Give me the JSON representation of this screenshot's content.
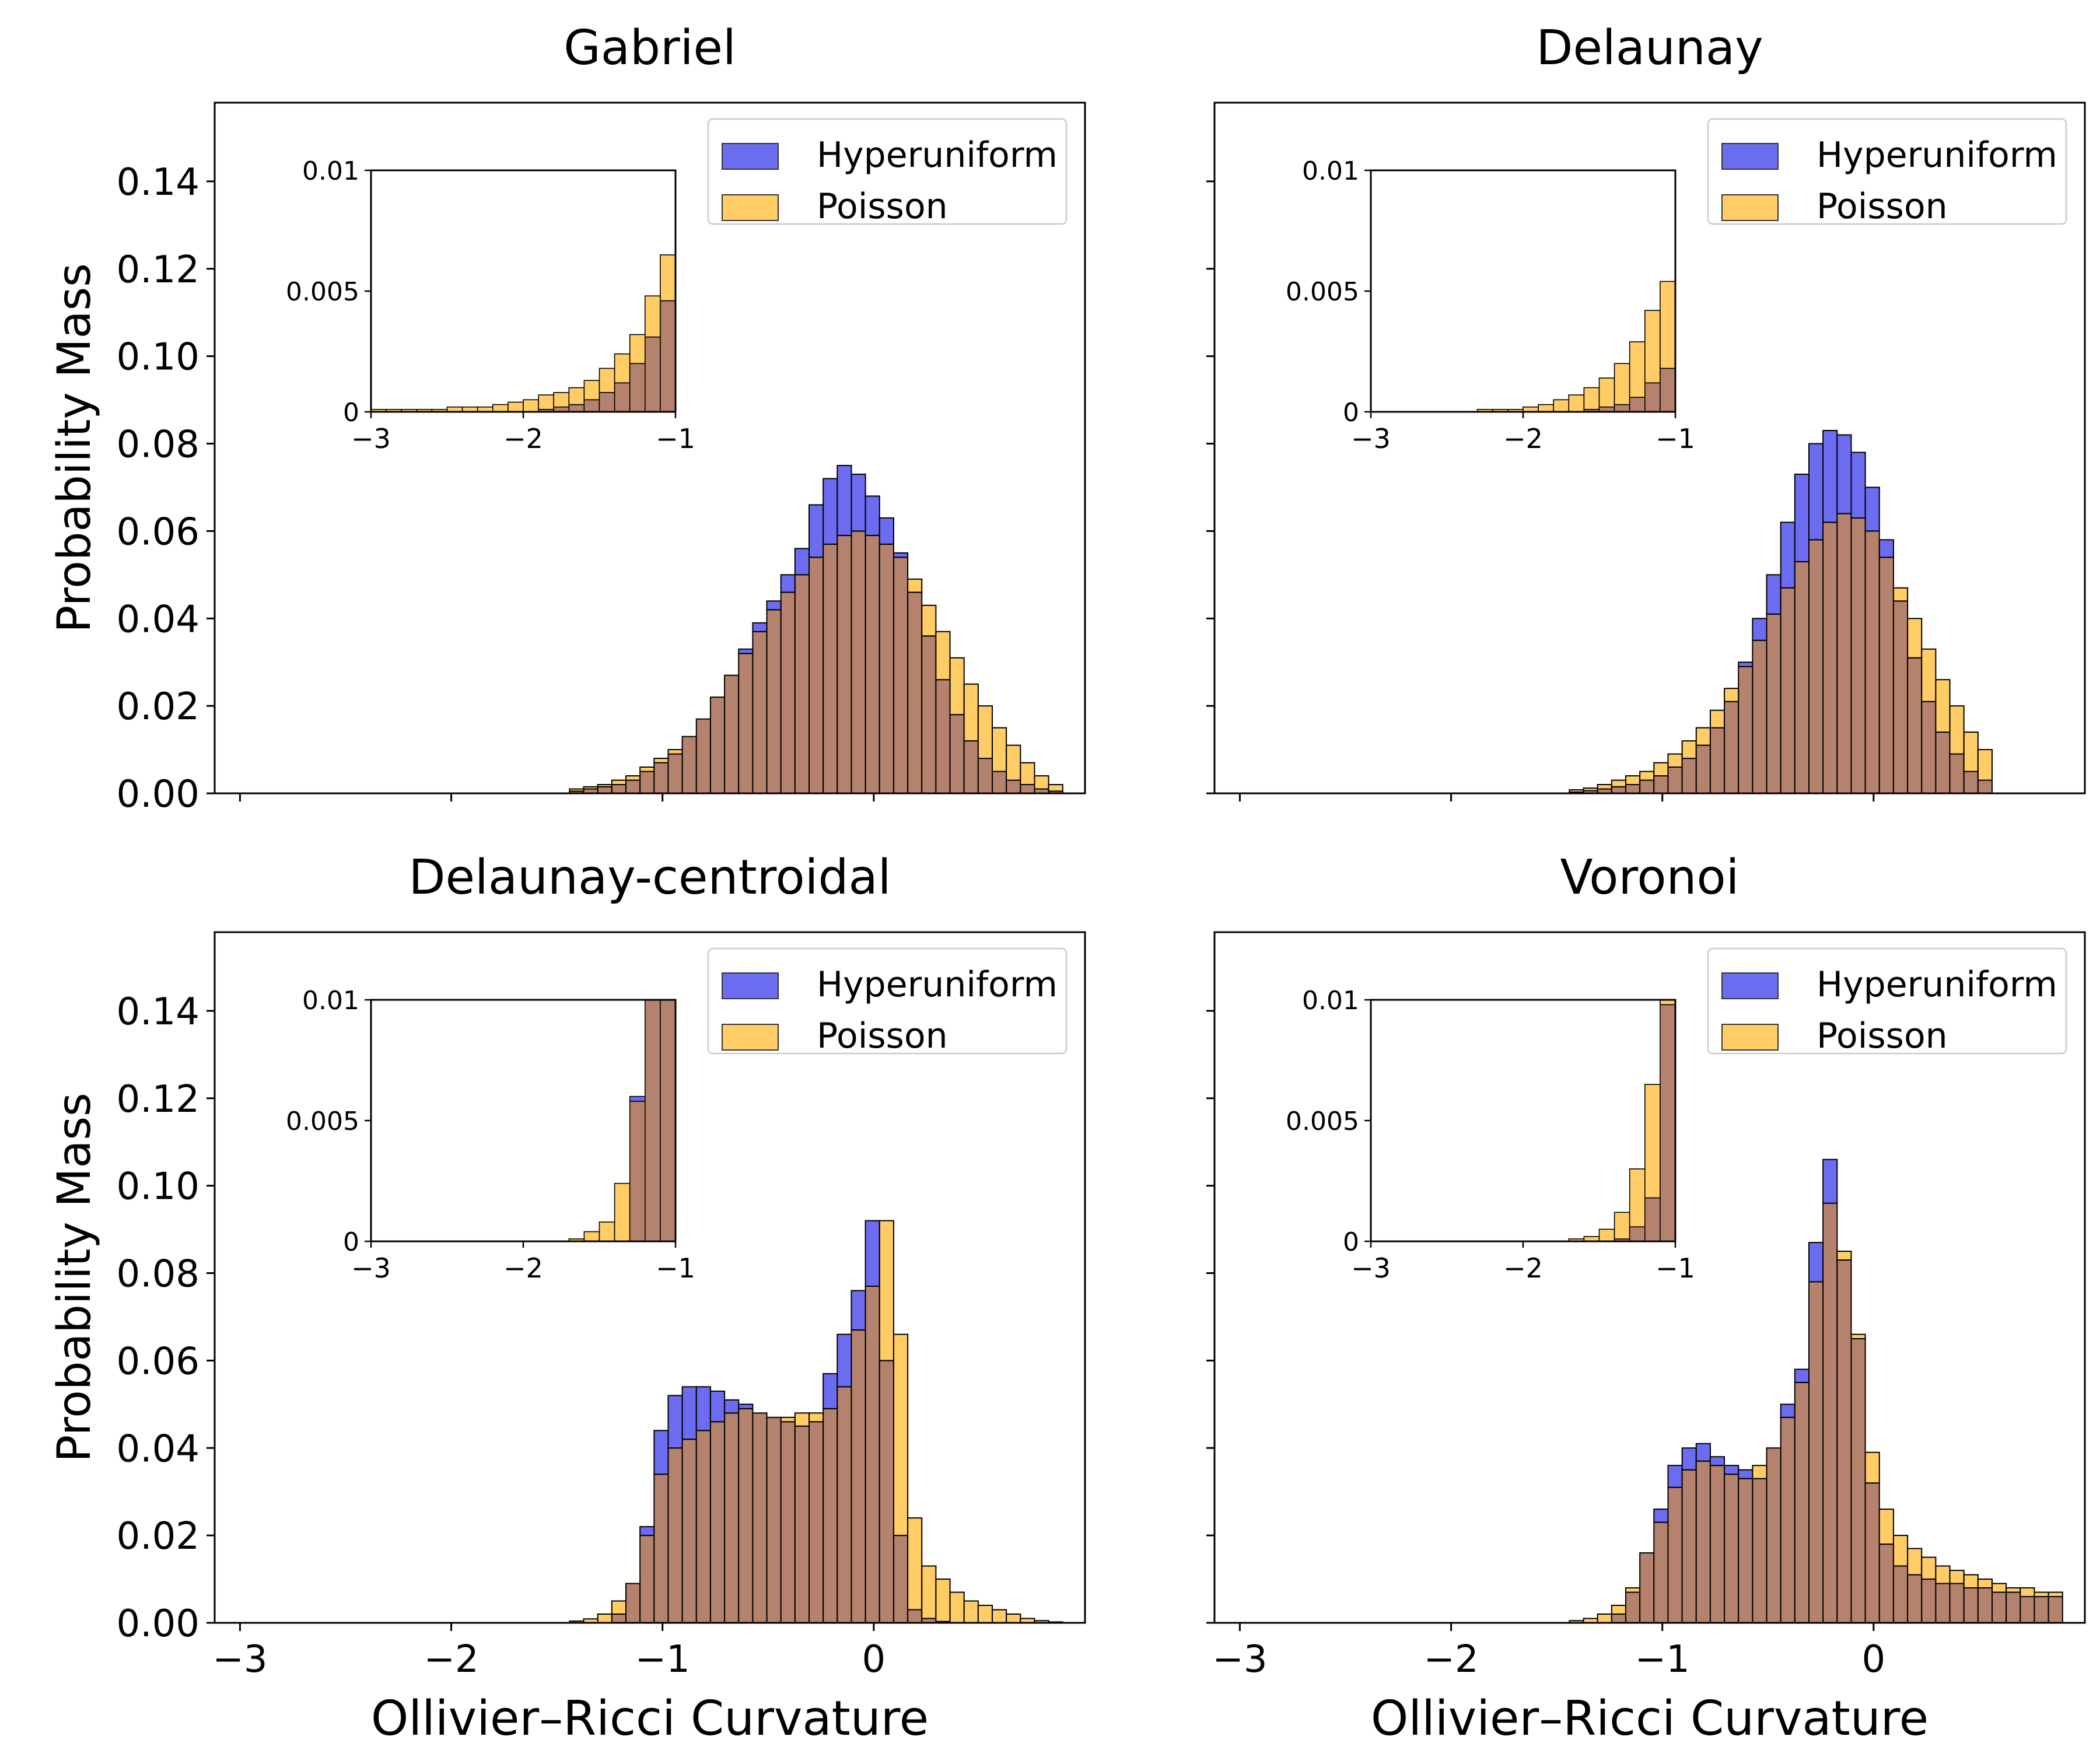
{
  "figure": {
    "ylabel": "Probability Mass",
    "xlabel": "Ollivier–Ricci Curvature"
  },
  "colors": {
    "hyperuniform": "#6c6cf0",
    "poisson": "#ffcc66",
    "overlap": "#b5826e",
    "edge": "#000000"
  },
  "chart_data": [
    {
      "type": "histogram",
      "title": "Gabriel",
      "xlabel": "Ollivier–Ricci Curvature",
      "ylabel": "Probability Mass",
      "xlim": [
        -3.12,
        1.0
      ],
      "ylim": [
        0,
        0.158
      ],
      "xticks": [
        -3,
        -2,
        -1,
        0
      ],
      "xtick_labels": [
        "−3",
        "−2",
        "−1",
        "0"
      ],
      "yticks": [
        0,
        0.02,
        0.04,
        0.06,
        0.08,
        0.1,
        0.12,
        0.14
      ],
      "ytick_labels": [
        "0.00",
        "0.02",
        "0.04",
        "0.06",
        "0.08",
        "0.10",
        "0.12",
        "0.14"
      ],
      "bin_start": -1.44,
      "bin_width": 0.0667,
      "legend": {
        "entries": [
          "Hyperuniform",
          "Poisson"
        ],
        "loc": "upper right"
      },
      "series": [
        {
          "name": "Hyperuniform",
          "values": [
            0.0005,
            0.001,
            0.0015,
            0.002,
            0.003,
            0.005,
            0.007,
            0.009,
            0.013,
            0.017,
            0.022,
            0.027,
            0.033,
            0.039,
            0.044,
            0.05,
            0.056,
            0.066,
            0.072,
            0.075,
            0.073,
            0.068,
            0.063,
            0.055,
            0.046,
            0.036,
            0.026,
            0.018,
            0.012,
            0.008,
            0.005,
            0.003,
            0.002,
            0.001,
            0.0005
          ]
        },
        {
          "name": "Poisson",
          "values": [
            0.001,
            0.0015,
            0.002,
            0.003,
            0.004,
            0.006,
            0.008,
            0.01,
            0.013,
            0.017,
            0.022,
            0.027,
            0.032,
            0.037,
            0.042,
            0.046,
            0.05,
            0.054,
            0.057,
            0.059,
            0.06,
            0.059,
            0.057,
            0.054,
            0.049,
            0.043,
            0.037,
            0.031,
            0.025,
            0.02,
            0.015,
            0.011,
            0.007,
            0.004,
            0.002
          ]
        }
      ],
      "inset": {
        "xlim": [
          -3,
          -1
        ],
        "ylim": [
          0,
          0.01
        ],
        "xticks": [
          -3,
          -2,
          -1
        ],
        "xtick_labels": [
          "−3",
          "−2",
          "−1"
        ],
        "yticks": [
          0,
          0.005,
          0.01
        ],
        "ytick_labels": [
          "0",
          "0.005",
          "0.01"
        ],
        "bin_width": 0.1,
        "series": [
          {
            "name": "Hyperuniform",
            "values": [
              0,
              0,
              0,
              0,
              0,
              0,
              0,
              0,
              0,
              0,
              0,
              0,
              0.0001,
              0.0002,
              0.0003,
              0.0005,
              0.0008,
              0.0012,
              0.002,
              0.0031,
              0.0046
            ]
          },
          {
            "name": "Poisson",
            "values": [
              0.0001,
              0.0001,
              0.0001,
              0.0001,
              0.0001,
              0.0001,
              0.0002,
              0.0002,
              0.0002,
              0.0003,
              0.0004,
              0.0005,
              0.0007,
              0.0008,
              0.001,
              0.0013,
              0.0018,
              0.0024,
              0.0032,
              0.0048,
              0.0065
            ]
          }
        ]
      }
    },
    {
      "type": "histogram",
      "title": "Delaunay",
      "xlabel": "Ollivier–Ricci Curvature",
      "ylabel": "Probability Mass",
      "xlim": [
        -3.12,
        1.0
      ],
      "ylim": [
        0,
        0.158
      ],
      "xticks": [
        -3,
        -2,
        -1,
        0
      ],
      "xtick_labels": [
        "−3",
        "−2",
        "−1",
        "0"
      ],
      "yticks": [
        0,
        0.02,
        0.04,
        0.06,
        0.08,
        0.1,
        0.12,
        0.14
      ],
      "ytick_labels": [
        "0.00",
        "0.02",
        "0.04",
        "0.06",
        "0.08",
        "0.10",
        "0.12",
        "0.14"
      ],
      "bin_start": -1.44,
      "bin_width": 0.0667,
      "legend": {
        "entries": [
          "Hyperuniform",
          "Poisson"
        ],
        "loc": "upper right"
      },
      "series": [
        {
          "name": "Hyperuniform",
          "values": [
            0.0003,
            0.0006,
            0.001,
            0.0015,
            0.002,
            0.003,
            0.004,
            0.006,
            0.008,
            0.011,
            0.015,
            0.021,
            0.03,
            0.04,
            0.05,
            0.062,
            0.073,
            0.08,
            0.083,
            0.082,
            0.078,
            0.07,
            0.058,
            0.044,
            0.031,
            0.021,
            0.014,
            0.009,
            0.005,
            0.003
          ]
        },
        {
          "name": "Poisson",
          "values": [
            0.0008,
            0.0012,
            0.002,
            0.003,
            0.004,
            0.005,
            0.007,
            0.009,
            0.012,
            0.015,
            0.019,
            0.024,
            0.029,
            0.035,
            0.041,
            0.047,
            0.053,
            0.058,
            0.062,
            0.064,
            0.063,
            0.06,
            0.054,
            0.047,
            0.04,
            0.033,
            0.026,
            0.02,
            0.014,
            0.01
          ]
        }
      ],
      "inset": {
        "xlim": [
          -3,
          -1
        ],
        "ylim": [
          0,
          0.01
        ],
        "xticks": [
          -3,
          -2,
          -1
        ],
        "xtick_labels": [
          "−3",
          "−2",
          "−1"
        ],
        "yticks": [
          0,
          0.005,
          0.01
        ],
        "ytick_labels": [
          "0",
          "0.005",
          "0.01"
        ],
        "bin_width": 0.1,
        "series": [
          {
            "name": "Hyperuniform",
            "values": [
              0,
              0,
              0,
              0,
              0,
              0,
              0,
              0,
              0,
              0,
              0,
              0,
              0,
              0,
              0,
              0.0001,
              0.0002,
              0.0003,
              0.0006,
              0.0012,
              0.0018
            ]
          },
          {
            "name": "Poisson",
            "values": [
              0,
              0,
              0,
              0,
              0,
              0,
              0,
              0,
              0.0001,
              0.0001,
              0.0001,
              0.0002,
              0.0003,
              0.0005,
              0.0007,
              0.001,
              0.0014,
              0.002,
              0.0029,
              0.0042,
              0.0054
            ]
          }
        ]
      }
    },
    {
      "type": "histogram",
      "title": "Delaunay-centroidal",
      "xlabel": "Ollivier–Ricci Curvature",
      "ylabel": "Probability Mass",
      "xlim": [
        -3.12,
        1.0
      ],
      "ylim": [
        0,
        0.158
      ],
      "xticks": [
        -3,
        -2,
        -1,
        0
      ],
      "xtick_labels": [
        "−3",
        "−2",
        "−1",
        "0"
      ],
      "yticks": [
        0,
        0.02,
        0.04,
        0.06,
        0.08,
        0.1,
        0.12,
        0.14
      ],
      "ytick_labels": [
        "0.00",
        "0.02",
        "0.04",
        "0.06",
        "0.08",
        "0.10",
        "0.12",
        "0.14"
      ],
      "bin_start": -1.44,
      "bin_width": 0.0667,
      "legend": {
        "entries": [
          "Hyperuniform",
          "Poisson"
        ],
        "loc": "upper right"
      },
      "series": [
        {
          "name": "Hyperuniform",
          "values": [
            0,
            0,
            0,
            0.002,
            0.009,
            0.022,
            0.044,
            0.052,
            0.054,
            0.054,
            0.053,
            0.051,
            0.05,
            0.048,
            0.047,
            0.046,
            0.045,
            0.046,
            0.057,
            0.066,
            0.076,
            0.092,
            0.06,
            0.02,
            0.003,
            0.001,
            0.0003,
            0,
            0,
            0,
            0,
            0,
            0,
            0,
            0
          ]
        },
        {
          "name": "Poisson",
          "values": [
            0.0004,
            0.0009,
            0.002,
            0.005,
            0.009,
            0.02,
            0.034,
            0.04,
            0.042,
            0.044,
            0.046,
            0.048,
            0.049,
            0.048,
            0.047,
            0.047,
            0.048,
            0.048,
            0.049,
            0.054,
            0.067,
            0.077,
            0.092,
            0.066,
            0.024,
            0.013,
            0.01,
            0.007,
            0.005,
            0.004,
            0.003,
            0.002,
            0.001,
            0.0005,
            0.0002
          ]
        }
      ],
      "inset": {
        "xlim": [
          -3,
          -1
        ],
        "ylim": [
          0,
          0.01
        ],
        "xticks": [
          -3,
          -2,
          -1
        ],
        "xtick_labels": [
          "−3",
          "−2",
          "−1"
        ],
        "yticks": [
          0,
          0.005,
          0.01
        ],
        "ytick_labels": [
          "0",
          "0.005",
          "0.01"
        ],
        "bin_width": 0.1,
        "series": [
          {
            "name": "Hyperuniform",
            "values": [
              0,
              0,
              0,
              0,
              0,
              0,
              0,
              0,
              0,
              0,
              0,
              0,
              0,
              0,
              0,
              0,
              0,
              0,
              0.006,
              0.01,
              0.01
            ]
          },
          {
            "name": "Poisson",
            "values": [
              0,
              0,
              0,
              0,
              0,
              0,
              0,
              0,
              0,
              0,
              0,
              0,
              0,
              0,
              0.0001,
              0.0004,
              0.0008,
              0.0024,
              0.0058,
              0.01,
              0.01
            ]
          }
        ]
      }
    },
    {
      "type": "histogram",
      "title": "Voronoi",
      "xlabel": "Ollivier–Ricci Curvature",
      "ylabel": "Probability Mass",
      "xlim": [
        -3.12,
        1.0
      ],
      "ylim": [
        0,
        0.158
      ],
      "xticks": [
        -3,
        -2,
        -1,
        0
      ],
      "xtick_labels": [
        "−3",
        "−2",
        "−1",
        "0"
      ],
      "yticks": [
        0,
        0.02,
        0.04,
        0.06,
        0.08,
        0.1,
        0.12,
        0.14
      ],
      "ytick_labels": [
        "0.00",
        "0.02",
        "0.04",
        "0.06",
        "0.08",
        "0.10",
        "0.12",
        "0.14"
      ],
      "bin_start": -1.44,
      "bin_width": 0.0667,
      "legend": {
        "entries": [
          "Hyperuniform",
          "Poisson"
        ],
        "loc": "upper right"
      },
      "series": [
        {
          "name": "Hyperuniform",
          "values": [
            0,
            0,
            0,
            0.002,
            0.007,
            0.016,
            0.026,
            0.036,
            0.04,
            0.041,
            0.038,
            0.036,
            0.035,
            0.033,
            0.04,
            0.05,
            0.058,
            0.087,
            0.106,
            0.083,
            0.065,
            0.032,
            0.018,
            0.013,
            0.011,
            0.01,
            0.009,
            0.009,
            0.008,
            0.008,
            0.007,
            0.007,
            0.006,
            0.006,
            0.006
          ]
        },
        {
          "name": "Poisson",
          "values": [
            0.0005,
            0.001,
            0.002,
            0.004,
            0.008,
            0.016,
            0.023,
            0.031,
            0.035,
            0.037,
            0.036,
            0.034,
            0.033,
            0.036,
            0.04,
            0.047,
            0.055,
            0.078,
            0.096,
            0.085,
            0.066,
            0.039,
            0.026,
            0.02,
            0.017,
            0.015,
            0.013,
            0.012,
            0.011,
            0.01,
            0.009,
            0.008,
            0.008,
            0.007,
            0.007
          ]
        }
      ],
      "inset": {
        "xlim": [
          -3,
          -1
        ],
        "ylim": [
          0,
          0.01
        ],
        "xticks": [
          -3,
          -2,
          -1
        ],
        "xtick_labels": [
          "−3",
          "−2",
          "−1"
        ],
        "yticks": [
          0,
          0.005,
          0.01
        ],
        "ytick_labels": [
          "0",
          "0.005",
          "0.01"
        ],
        "bin_width": 0.1,
        "series": [
          {
            "name": "Hyperuniform",
            "values": [
              0,
              0,
              0,
              0,
              0,
              0,
              0,
              0,
              0,
              0,
              0,
              0,
              0,
              0,
              0,
              0,
              0,
              0.0001,
              0.0006,
              0.0018,
              0.0098
            ]
          },
          {
            "name": "Poisson",
            "values": [
              0,
              0,
              0,
              0,
              0,
              0,
              0,
              0,
              0,
              0,
              0,
              0,
              0,
              0,
              0.0001,
              0.0002,
              0.0005,
              0.0012,
              0.003,
              0.0065,
              0.01
            ]
          }
        ]
      }
    }
  ]
}
